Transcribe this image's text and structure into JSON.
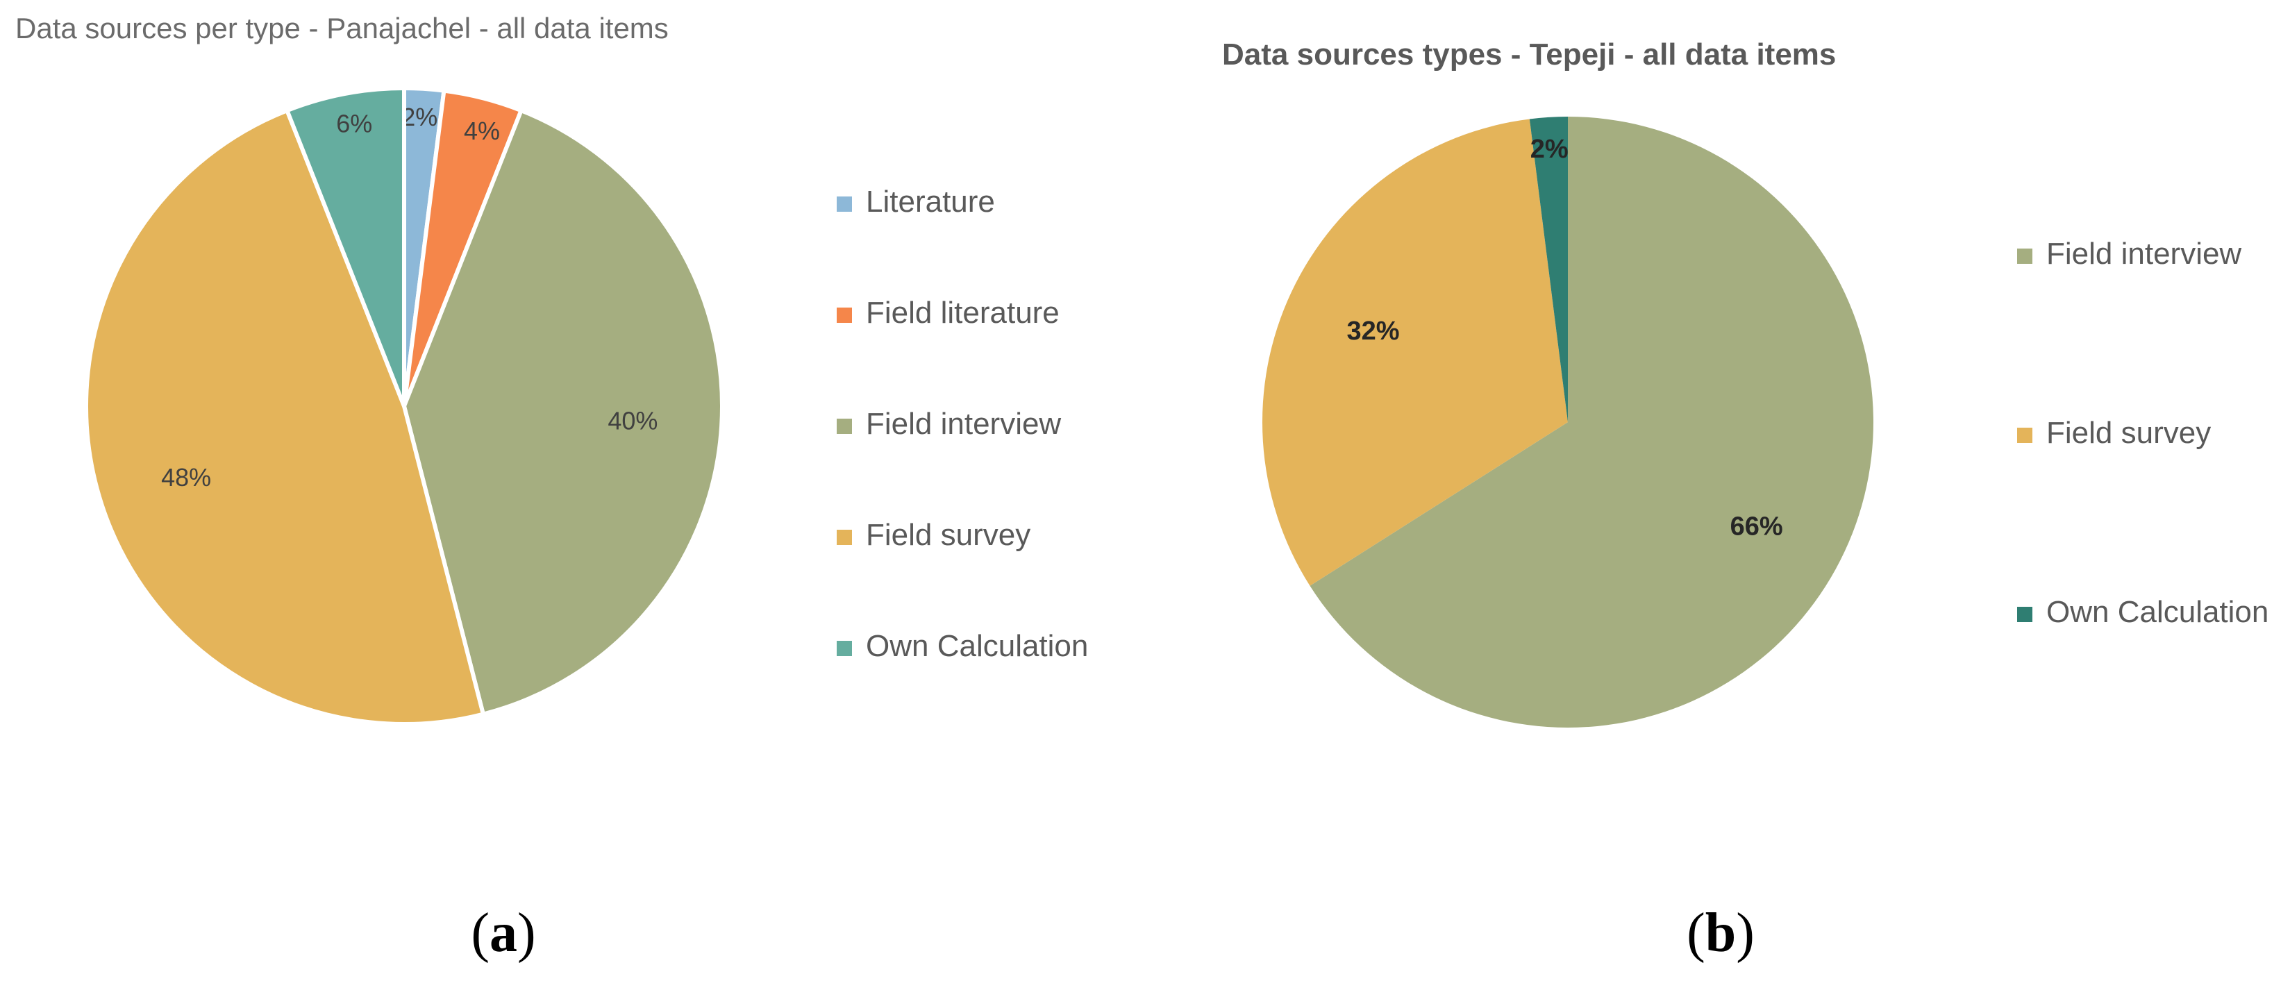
{
  "chart_data": [
    {
      "type": "pie",
      "title": "Data sources per type  - Panajachel - all data items",
      "caption": {
        "open": "(",
        "letter": "a",
        "close": ")"
      },
      "slices": [
        {
          "name": "Literature",
          "value": 2,
          "label": "2%",
          "color": "#8DB8D8"
        },
        {
          "name": "Field literature",
          "value": 4,
          "label": "4%",
          "color": "#F5864A"
        },
        {
          "name": "Field interview",
          "value": 40,
          "label": "40%",
          "color": "#A5AE80"
        },
        {
          "name": "Field survey",
          "value": 48,
          "label": "48%",
          "color": "#E4B45A"
        },
        {
          "name": "Own Calculation",
          "value": 6,
          "label": "6%",
          "color": "#65AD9F"
        }
      ],
      "legend_position": "right"
    },
    {
      "type": "pie",
      "title": "Data sources types - Tepeji - all data items",
      "caption": {
        "open": "(",
        "letter": "b",
        "close": ")"
      },
      "slices": [
        {
          "name": "Field interview",
          "value": 66,
          "label": "66%",
          "color": "#A5AE80"
        },
        {
          "name": "Field survey",
          "value": 32,
          "label": "32%",
          "color": "#E4B45A"
        },
        {
          "name": "Own Calculation",
          "value": 2,
          "label": "2%",
          "color": "#2F7E72"
        }
      ],
      "legend_position": "right"
    }
  ]
}
